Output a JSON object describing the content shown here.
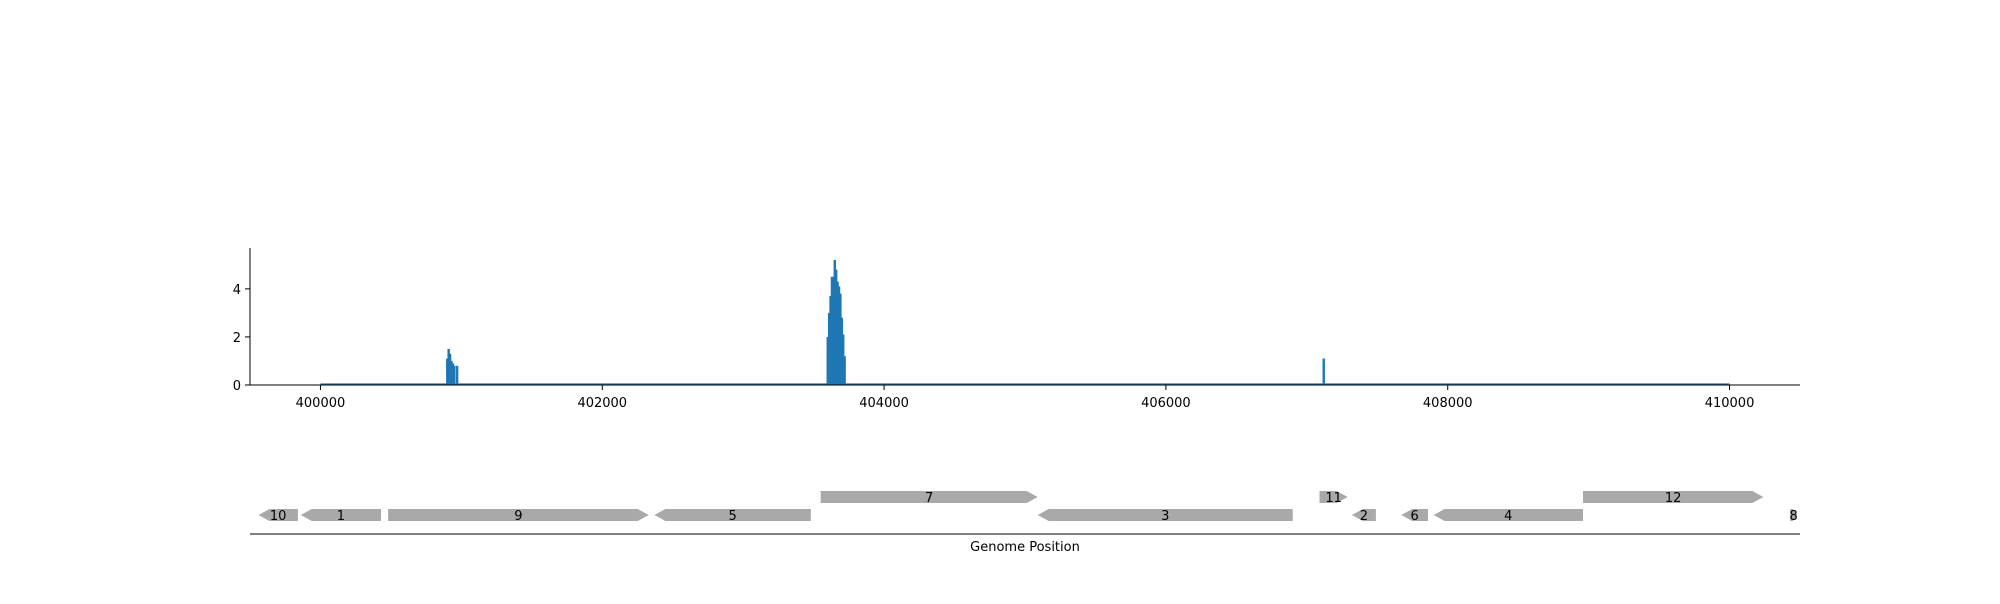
{
  "chart_data": [
    {
      "type": "bar",
      "panel": "coverage",
      "xlim": [
        399500,
        410500
      ],
      "ylim": [
        0,
        5.7
      ],
      "xticks": [
        400000,
        402000,
        404000,
        406000,
        408000,
        410000
      ],
      "yticks": [
        0,
        2,
        4
      ],
      "grid": false,
      "baseline": [
        400000,
        410000
      ],
      "x": [
        400900,
        400910,
        400920,
        400930,
        400940,
        400950,
        400970,
        403600,
        403610,
        403620,
        403630,
        403640,
        403650,
        403660,
        403670,
        403680,
        403690,
        403700,
        403710,
        403720,
        407120
      ],
      "values": [
        1.1,
        1.5,
        1.3,
        1.0,
        0.9,
        0.8,
        0.8,
        2.0,
        3.0,
        3.7,
        4.5,
        4.5,
        5.2,
        4.8,
        4.3,
        4.1,
        3.8,
        2.8,
        2.1,
        1.2,
        1.1
      ],
      "color": "#1f77b4"
    },
    {
      "type": "gene-track",
      "panel": "genes",
      "xlim": [
        399500,
        410500
      ],
      "xlabel": "Genome Position",
      "genes": [
        {
          "label": "10",
          "start": 399560,
          "end": 399840,
          "strand": "-",
          "row": 0
        },
        {
          "label": "1",
          "start": 399860,
          "end": 400430,
          "strand": "-",
          "row": 0
        },
        {
          "label": "9",
          "start": 400480,
          "end": 402330,
          "strand": "+",
          "row": 0
        },
        {
          "label": "5",
          "start": 402370,
          "end": 403480,
          "strand": "-",
          "row": 0
        },
        {
          "label": "7",
          "start": 403550,
          "end": 405090,
          "strand": "+",
          "row": 1
        },
        {
          "label": "3",
          "start": 405090,
          "end": 406900,
          "strand": "-",
          "row": 0
        },
        {
          "label": "11",
          "start": 407090,
          "end": 407290,
          "strand": "+",
          "row": 1
        },
        {
          "label": "2",
          "start": 407320,
          "end": 407490,
          "strand": "-",
          "row": 0
        },
        {
          "label": "6",
          "start": 407670,
          "end": 407860,
          "strand": "-",
          "row": 0
        },
        {
          "label": "4",
          "start": 407900,
          "end": 408960,
          "strand": "-",
          "row": 0
        },
        {
          "label": "12",
          "start": 408960,
          "end": 410240,
          "strand": "+",
          "row": 1
        },
        {
          "label": "8",
          "start": 410430,
          "end": 410480,
          "strand": "+",
          "row": 0
        }
      ],
      "color": "#a9a9a9"
    }
  ]
}
